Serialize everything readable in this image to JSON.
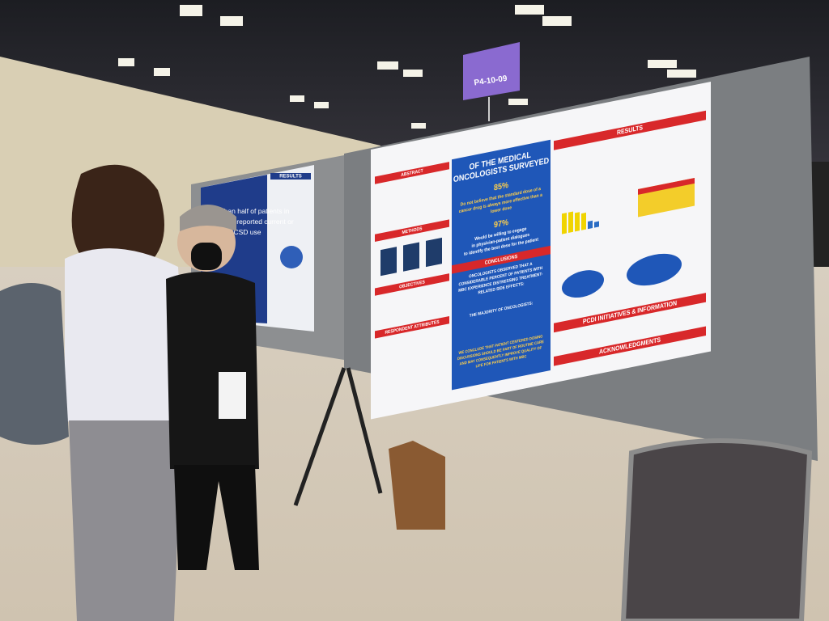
{
  "sign": {
    "code": "P4-10-09"
  },
  "left_poster": {
    "heading_lines": [
      "Less than half of patients in",
      "this study reported current or",
      "previous CSD use"
    ],
    "section": "RESULTS"
  },
  "poster": {
    "left_sections": [
      "ABSTRACT",
      "METHODS",
      "OBJECTIVES",
      "RESPONDENT ATTRIBUTES"
    ],
    "center": {
      "headline_lines": [
        "OF THE MEDICAL",
        "ONCOLOGISTS SURVEYED"
      ],
      "stat1": "85%",
      "stat1_lines": [
        "Do not believe that the standard dose of a",
        "cancer drug is always more effective than a",
        "lower dose"
      ],
      "stat2": "97%",
      "stat2_lines": [
        "Would be willing to engage",
        "in physician-patient dialogues",
        "to identify the best dose for the patient"
      ],
      "conclusions": "CONCLUSIONS",
      "observed_lines": [
        "ONCOLOGISTS OBSERVED THAT A",
        "CONSIDERABLE PERCENT OF PATIENTS WITH",
        "MBC EXPERIENCE DISTRESSING TREATMENT-",
        "RELATED SIDE EFFECTS:"
      ],
      "majority": "THE MAJORITY OF ONCOLOGISTS:",
      "conclude_lines": [
        "WE CONCLUDE THAT PATIENT CENTERED DOSING",
        "DISCUSSIONS SHOULD BE PART OF ROUTINE CARE",
        "AND MAY CONSEQUENTLY IMPROVE QUALITY OF",
        "LIFE FOR PATIENTS WITH MBC"
      ]
    },
    "right_sections": {
      "results": "RESULTS",
      "initiatives": "PCDI INITIATIVES & INFORMATION",
      "acknowledgments": "ACKNOWLEDGMENTS"
    }
  }
}
